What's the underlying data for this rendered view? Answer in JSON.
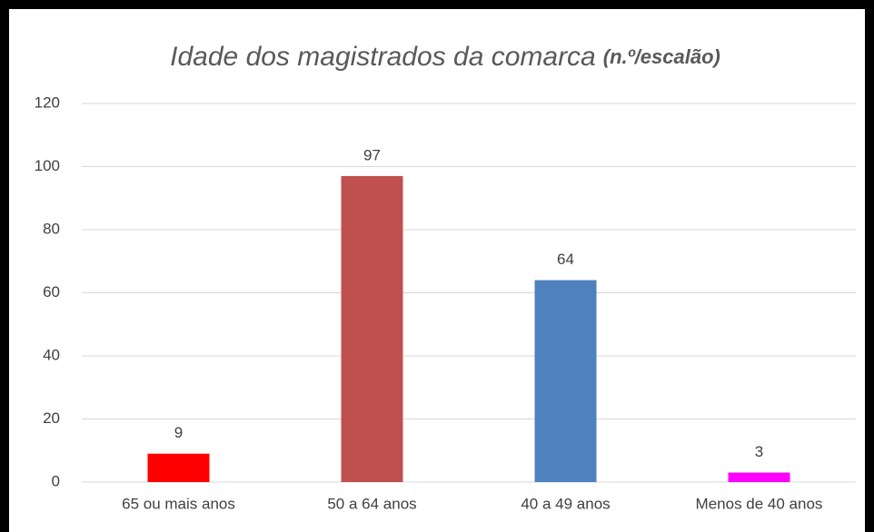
{
  "chart_data": {
    "type": "bar",
    "title": "Idade dos magistrados da comarca",
    "subtitle": "(n.º/escalão)",
    "categories": [
      "65 ou mais anos",
      "50 a 64 anos",
      "40 a 49 anos",
      "Menos de 40 anos"
    ],
    "values": [
      9,
      97,
      64,
      3
    ],
    "colors": [
      "#ff0000",
      "#c0504d",
      "#4f81bd",
      "#ff00ff"
    ],
    "ylim": [
      0,
      120
    ],
    "yticks": [
      0,
      20,
      40,
      60,
      80,
      100,
      120
    ],
    "grid": true
  }
}
